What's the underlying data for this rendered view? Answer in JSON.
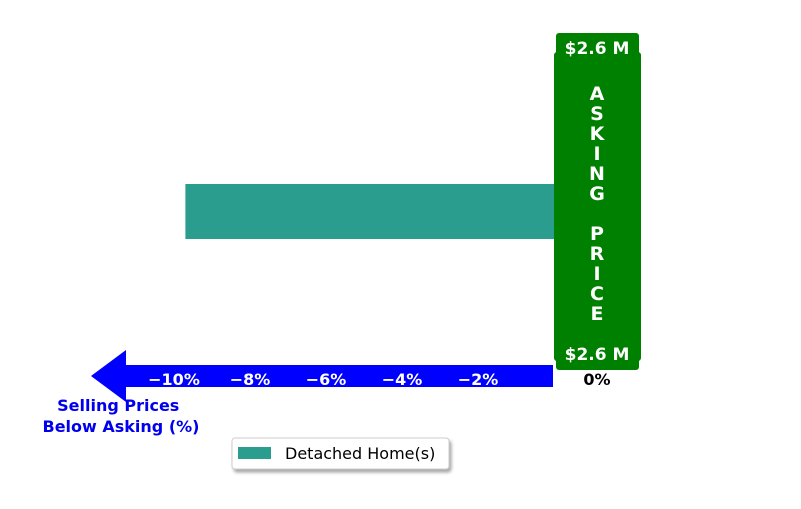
{
  "chart_data": {
    "type": "bar",
    "orientation": "horizontal",
    "categories": [
      "Detached Home(s)"
    ],
    "series": [
      {
        "name": "Detached Home(s)",
        "values": [
          -9.7
        ],
        "color": "#2a9d8f"
      }
    ],
    "x_ticks": [
      "−10%",
      "−8%",
      "−6%",
      "−4%",
      "−2%"
    ],
    "x_tick_values": [
      -10,
      -8,
      -6,
      -4,
      -2
    ],
    "zero_label": "0%",
    "xlim": [
      -11.2,
      0
    ],
    "xlabel": "Selling Prices\nBelow Asking (%)",
    "asking_price_label": "ASKING PRICE",
    "asking_price_top": "$2.6 M",
    "asking_price_bottom": "$2.6 M",
    "legend": {
      "entries": [
        "Detached Home(s)"
      ],
      "placement": "bottom-center"
    },
    "grid": false,
    "colors": {
      "axis_arrow": "#0000ff",
      "asking_band": "#008000",
      "axis_label": "#0000ee"
    }
  }
}
